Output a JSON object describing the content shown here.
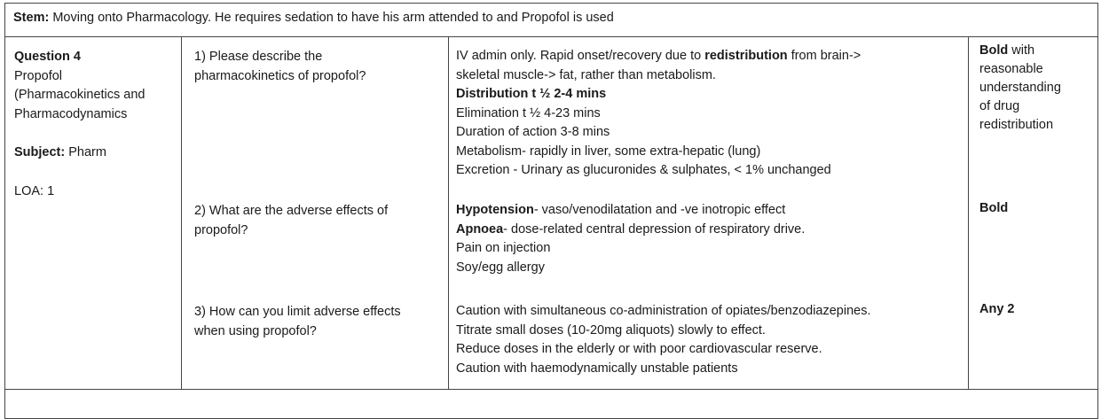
{
  "stem": {
    "label": "Stem:",
    "text": " Moving onto Pharmacology. He requires sedation to have his arm attended to and Propofol is used"
  },
  "info": {
    "question_label": "Question 4",
    "topic_lines": [
      "Propofol",
      "(Pharmacokinetics and",
      "Pharmacodynamics"
    ],
    "subject_label": "Subject:",
    "subject_value": " Pharm",
    "loa": "LOA: 1"
  },
  "questions": [
    {
      "q_lines": [
        "1) Please describe the",
        "pharmacokinetics of propofol?"
      ],
      "answer": {
        "l1_pre": "IV admin only. Rapid onset/recovery due to ",
        "l1_bold": "redistribution",
        "l1_post": " from brain->",
        "l2": "skeletal muscle-> fat, rather than metabolism.",
        "l3_bold": "Distribution t ½ 2-4 mins",
        "l4": "Elimination t ½ 4-23 mins",
        "l5": "Duration of action 3-8 mins",
        "l6": "Metabolism- rapidly in liver, some extra-hepatic (lung)",
        "l7": "Excretion - Urinary as glucuronides & sulphates, < 1% unchanged"
      },
      "mark_bold": "Bold",
      "mark_rest_lines": [
        " with",
        "reasonable",
        "understanding",
        "of drug",
        "redistribution"
      ]
    },
    {
      "q_lines": [
        "2) What are the adverse effects of",
        "propofol?"
      ],
      "answer": {
        "l1_bold": "Hypotension",
        "l1_rest": "- vaso/venodilatation and -ve inotropic effect",
        "l2_bold": "Apnoea",
        "l2_rest": "- dose-related central depression of respiratory drive.",
        "l3": "Pain on injection",
        "l4": "Soy/egg allergy"
      },
      "mark_bold": "Bold"
    },
    {
      "q_lines": [
        "3) How can you limit adverse effects",
        "when using propofol?"
      ],
      "answer_lines": [
        "Caution with simultaneous co-administration of opiates/benzodiazepines.",
        "Titrate small doses (10-20mg aliquots) slowly to effect.",
        "Reduce doses in the elderly or with poor cardiovascular reserve.",
        "Caution with haemodynamically unstable patients"
      ],
      "mark_bold": "Any 2"
    }
  ]
}
